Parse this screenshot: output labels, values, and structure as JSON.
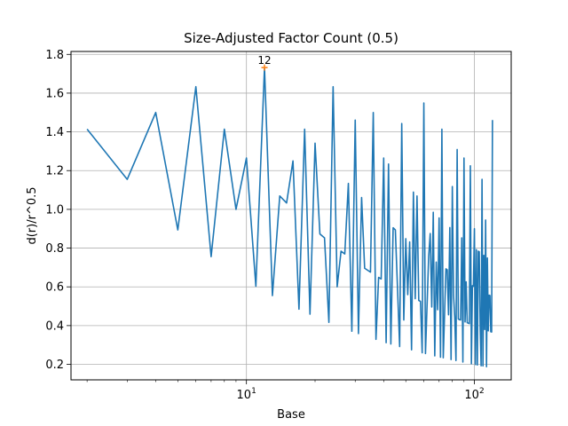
{
  "chart_data": {
    "type": "line",
    "title": "Size-Adjusted Factor Count (0.5)",
    "xlabel": "Base",
    "ylabel": "d(r)/r^0.5",
    "xscale": "log",
    "xlim": [
      1.7,
      145
    ],
    "ylim": [
      0.12,
      1.815
    ],
    "grid": true,
    "x_ticks": [
      {
        "value": 10,
        "base": "10",
        "exp": "1"
      },
      {
        "value": 100,
        "base": "10",
        "exp": "2"
      }
    ],
    "y_ticks": [
      0.2,
      0.4,
      0.6,
      0.8,
      1.0,
      1.2,
      1.4,
      1.6,
      1.8
    ],
    "series": [
      {
        "name": "d(r)/r^0.5",
        "color": "#1f77b4",
        "points": [
          [
            2,
            1.414
          ],
          [
            3,
            1.155
          ],
          [
            4,
            1.5
          ],
          [
            5,
            0.894
          ],
          [
            6,
            1.633
          ],
          [
            7,
            0.756
          ],
          [
            8,
            1.414
          ],
          [
            9,
            1.0
          ],
          [
            10,
            1.265
          ],
          [
            11,
            0.603
          ],
          [
            12,
            1.732
          ],
          [
            13,
            0.555
          ],
          [
            14,
            1.069
          ],
          [
            15,
            1.033
          ],
          [
            16,
            1.25
          ],
          [
            17,
            0.485
          ],
          [
            18,
            1.414
          ],
          [
            19,
            0.459
          ],
          [
            20,
            1.342
          ],
          [
            21,
            0.873
          ],
          [
            22,
            0.853
          ],
          [
            23,
            0.417
          ],
          [
            24,
            1.633
          ],
          [
            25,
            0.6
          ],
          [
            26,
            0.784
          ],
          [
            27,
            0.77
          ],
          [
            28,
            1.134
          ],
          [
            29,
            0.371
          ],
          [
            30,
            1.461
          ],
          [
            31,
            0.359
          ],
          [
            32,
            1.061
          ],
          [
            33,
            0.696
          ],
          [
            35,
            0.676
          ],
          [
            36,
            1.5
          ],
          [
            37,
            0.329
          ],
          [
            38,
            0.649
          ],
          [
            39,
            0.641
          ],
          [
            40,
            1.265
          ],
          [
            41,
            0.312
          ],
          [
            42,
            1.234
          ],
          [
            43,
            0.305
          ],
          [
            44,
            0.905
          ],
          [
            45,
            0.894
          ],
          [
            46,
            0.59
          ],
          [
            47,
            0.292
          ],
          [
            48,
            1.443
          ],
          [
            49,
            0.429
          ],
          [
            50,
            0.849
          ],
          [
            51,
            0.56
          ],
          [
            52,
            0.832
          ],
          [
            53,
            0.275
          ],
          [
            54,
            1.089
          ],
          [
            55,
            0.539
          ],
          [
            56,
            1.069
          ],
          [
            57,
            0.53
          ],
          [
            58,
            0.525
          ],
          [
            59,
            0.26
          ],
          [
            60,
            1.549
          ],
          [
            61,
            0.256
          ],
          [
            62,
            0.508
          ],
          [
            63,
            0.756
          ],
          [
            64,
            0.875
          ],
          [
            65,
            0.496
          ],
          [
            66,
            0.985
          ],
          [
            67,
            0.244
          ],
          [
            68,
            0.728
          ],
          [
            69,
            0.482
          ],
          [
            70,
            0.956
          ],
          [
            71,
            0.237
          ],
          [
            72,
            1.414
          ],
          [
            73,
            0.234
          ],
          [
            74,
            0.465
          ],
          [
            75,
            0.693
          ],
          [
            76,
            0.688
          ],
          [
            77,
            0.456
          ],
          [
            78,
            0.906
          ],
          [
            79,
            0.225
          ],
          [
            80,
            1.118
          ],
          [
            81,
            0.556
          ],
          [
            82,
            0.442
          ],
          [
            83,
            0.22
          ],
          [
            84,
            1.309
          ],
          [
            85,
            0.434
          ],
          [
            86,
            0.431
          ],
          [
            87,
            0.429
          ],
          [
            88,
            0.853
          ],
          [
            89,
            0.212
          ],
          [
            90,
            1.265
          ],
          [
            91,
            0.419
          ],
          [
            92,
            0.626
          ],
          [
            93,
            0.415
          ],
          [
            94,
            0.413
          ],
          [
            95,
            0.41
          ],
          [
            96,
            1.225
          ],
          [
            97,
            0.203
          ],
          [
            98,
            0.606
          ],
          [
            99,
            0.603
          ],
          [
            100,
            0.9
          ],
          [
            101,
            0.199
          ],
          [
            102,
            0.792
          ],
          [
            103,
            0.197
          ],
          [
            104,
            0.784
          ],
          [
            105,
            0.781
          ],
          [
            106,
            0.389
          ],
          [
            107,
            0.193
          ],
          [
            108,
            1.155
          ],
          [
            109,
            0.192
          ],
          [
            110,
            0.763
          ],
          [
            111,
            0.38
          ],
          [
            112,
            0.945
          ],
          [
            113,
            0.188
          ],
          [
            114,
            0.749
          ],
          [
            115,
            0.373
          ],
          [
            116,
            0.557
          ],
          [
            117,
            0.555
          ],
          [
            118,
            0.368
          ],
          [
            119,
            0.367
          ],
          [
            120,
            1.461
          ]
        ]
      }
    ],
    "highlight": {
      "x": 12,
      "y": 1.732,
      "label": "12",
      "color": "#ff7f0e"
    }
  }
}
